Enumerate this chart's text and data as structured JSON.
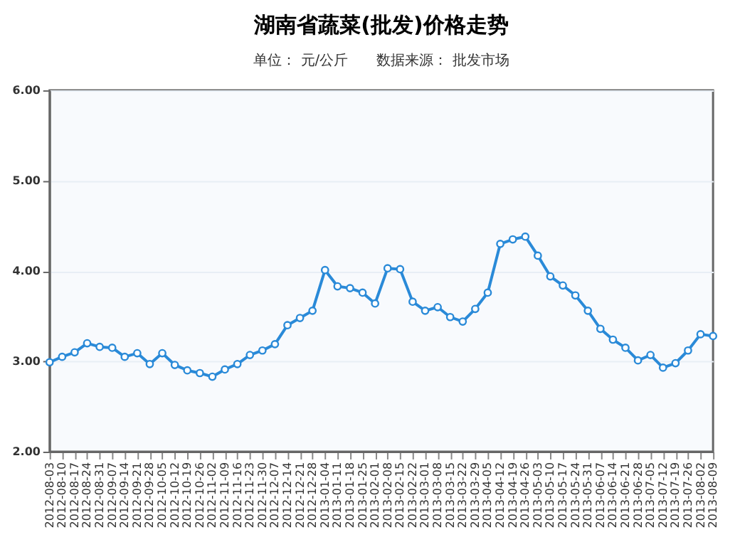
{
  "chart_data": {
    "type": "line",
    "title": "湖南省蔬菜(批发)价格走势",
    "subtitle": "单位： 元/公斤　　数据来源： 批发市场",
    "categories": [
      "2012-08-03",
      "2012-08-10",
      "2012-08-17",
      "2012-08-24",
      "2012-08-31",
      "2012-09-07",
      "2012-09-14",
      "2012-09-21",
      "2012-09-28",
      "2012-10-05",
      "2012-10-12",
      "2012-10-19",
      "2012-10-26",
      "2012-11-02",
      "2012-11-09",
      "2012-11-16",
      "2012-11-23",
      "2012-11-30",
      "2012-12-07",
      "2012-12-14",
      "2012-12-21",
      "2012-12-28",
      "2013-01-04",
      "2013-01-11",
      "2013-01-18",
      "2013-01-25",
      "2013-02-01",
      "2013-02-08",
      "2013-02-15",
      "2013-02-22",
      "2013-03-01",
      "2013-03-08",
      "2013-03-15",
      "2013-03-22",
      "2013-03-29",
      "2013-04-05",
      "2013-04-12",
      "2013-04-19",
      "2013-04-26",
      "2013-05-03",
      "2013-05-10",
      "2013-05-17",
      "2013-05-24",
      "2013-05-31",
      "2013-06-07",
      "2013-06-14",
      "2013-06-21",
      "2013-06-28",
      "2013-07-05",
      "2013-07-12",
      "2013-07-19",
      "2013-07-26",
      "2013-08-02",
      "2013-08-09"
    ],
    "series": [
      {
        "color": "#2a8ad8",
        "values": [
          2.99,
          3.05,
          3.1,
          3.2,
          3.16,
          3.15,
          3.05,
          3.09,
          2.97,
          3.09,
          2.96,
          2.9,
          2.87,
          2.83,
          2.91,
          2.97,
          3.07,
          3.12,
          3.19,
          3.4,
          3.48,
          3.56,
          4.01,
          3.83,
          3.81,
          3.76,
          3.64,
          4.03,
          4.02,
          3.66,
          3.56,
          3.6,
          3.49,
          3.44,
          3.58,
          3.76,
          4.3,
          4.35,
          4.38,
          4.17,
          3.94,
          3.84,
          3.73,
          3.56,
          3.36,
          3.24,
          3.15,
          3.01,
          3.07,
          2.93,
          2.98,
          3.12,
          3.3,
          3.28
        ]
      }
    ],
    "ylim": [
      2,
      6
    ],
    "yticks": [
      {
        "value": 2,
        "label": "2.00"
      },
      {
        "value": 3,
        "label": "3.00"
      },
      {
        "value": 4,
        "label": "4.00"
      },
      {
        "value": 5,
        "label": "5.00"
      },
      {
        "value": 6,
        "label": "6.00"
      }
    ],
    "grid": "y",
    "marker": "circle",
    "line_style": "solid"
  }
}
